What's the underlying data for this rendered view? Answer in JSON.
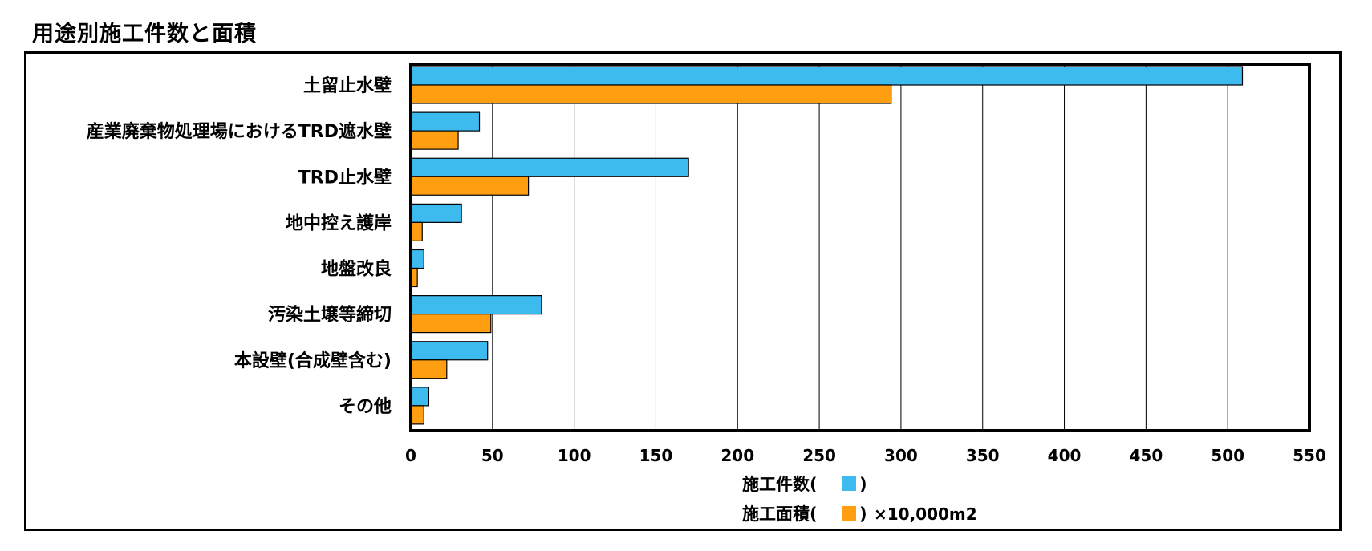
{
  "chart_data": {
    "type": "bar",
    "orientation": "horizontal",
    "title": "用途別施工件数と面積",
    "categories": [
      "土留止水壁",
      "産業廃棄物処理場におけるTRD遮水壁",
      "TRD止水壁",
      "地中控え護岸",
      "地盤改良",
      "汚染土壌等締切",
      "本設壁(合成壁含む)",
      "その他"
    ],
    "series": [
      {
        "name": "施工件数",
        "color": "#3DBBEF",
        "values": [
          509,
          42,
          170,
          31,
          8,
          80,
          47,
          11
        ]
      },
      {
        "name": "施工面積",
        "color": "#FF9E10",
        "values": [
          294,
          29,
          72,
          7,
          4,
          49,
          22,
          8
        ]
      }
    ],
    "xlim": [
      0,
      550
    ],
    "xticks": [
      0,
      50,
      100,
      150,
      200,
      250,
      300,
      350,
      400,
      450,
      500,
      550
    ],
    "grid": true,
    "legend": {
      "line1_label": "施工件数(",
      "line1_suffix": ")",
      "line2_label": "施工面積(",
      "line2_suffix": ")",
      "line2_unit": "×10,000m2"
    }
  }
}
